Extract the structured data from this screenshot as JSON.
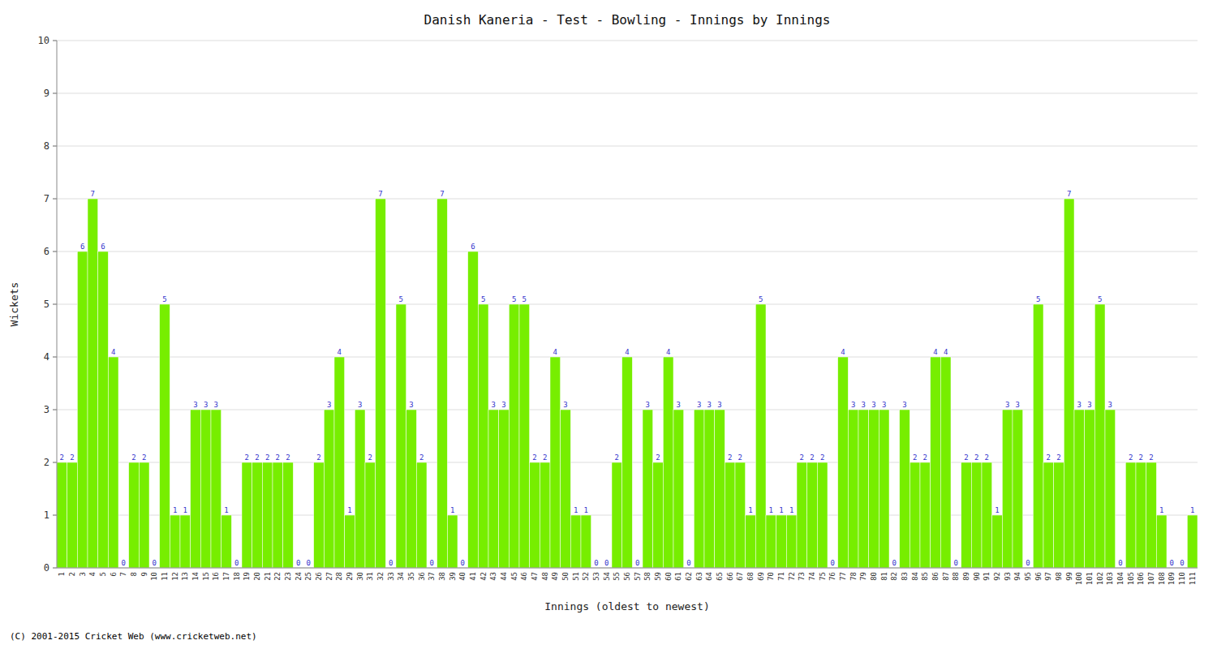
{
  "chart_data": {
    "type": "bar",
    "title": "Danish Kaneria - Test - Bowling - Innings by Innings",
    "x_label": "Innings (oldest to newest)",
    "y_label": "Wickets",
    "annotations": [
      "(C) 2001-2015 Cricket Web (www.cricketweb.net)"
    ],
    "categories": [
      "1",
      "2",
      "3",
      "4",
      "5",
      "6",
      "7",
      "8",
      "9",
      "10",
      "11",
      "12",
      "13",
      "14",
      "15",
      "16",
      "17",
      "18",
      "19",
      "20",
      "21",
      "22",
      "23",
      "24",
      "25",
      "26",
      "27",
      "28",
      "29",
      "30",
      "31",
      "32",
      "33",
      "34",
      "35",
      "36",
      "37",
      "38",
      "39",
      "40",
      "41",
      "42",
      "43",
      "44",
      "45",
      "46",
      "47",
      "48",
      "49",
      "50",
      "51",
      "52",
      "53",
      "54",
      "55",
      "56",
      "57",
      "58",
      "59",
      "60",
      "61",
      "62",
      "63",
      "64",
      "65",
      "66",
      "67",
      "68",
      "69",
      "70",
      "71",
      "72",
      "73",
      "74",
      "75",
      "76",
      "77",
      "78",
      "79",
      "80",
      "81",
      "82",
      "83",
      "84",
      "85",
      "86",
      "87",
      "88",
      "89",
      "90",
      "91",
      "92",
      "93",
      "94",
      "95",
      "96",
      "97",
      "98",
      "99",
      "100",
      "101",
      "102",
      "103",
      "104",
      "105",
      "106",
      "107",
      "108",
      "109",
      "110",
      "111"
    ],
    "values": [
      2,
      2,
      6,
      7,
      6,
      4,
      0,
      2,
      2,
      0,
      5,
      1,
      1,
      3,
      3,
      3,
      1,
      0,
      2,
      2,
      2,
      2,
      2,
      0,
      0,
      2,
      3,
      4,
      1,
      3,
      2,
      7,
      0,
      5,
      3,
      2,
      0,
      7,
      1,
      0,
      6,
      5,
      3,
      3,
      5,
      5,
      2,
      2,
      4,
      3,
      1,
      1,
      0,
      0,
      2,
      4,
      0,
      3,
      2,
      4,
      3,
      0,
      3,
      3,
      3,
      2,
      2,
      1,
      5,
      1,
      1,
      1,
      2,
      2,
      2,
      0,
      4,
      3,
      3,
      3,
      3,
      0,
      3,
      2,
      2,
      4,
      4,
      0,
      2,
      2,
      2,
      1,
      3,
      3,
      0,
      5,
      2,
      2,
      7,
      3,
      3,
      5,
      3,
      0,
      2,
      2,
      2,
      1,
      0,
      0,
      1
    ],
    "color": "#77EE00",
    "ylim": [
      0,
      10
    ],
    "yticks": [
      0,
      1,
      2,
      3,
      4,
      5,
      6,
      7,
      8,
      9,
      10
    ],
    "grid": true,
    "data_labels": true
  }
}
